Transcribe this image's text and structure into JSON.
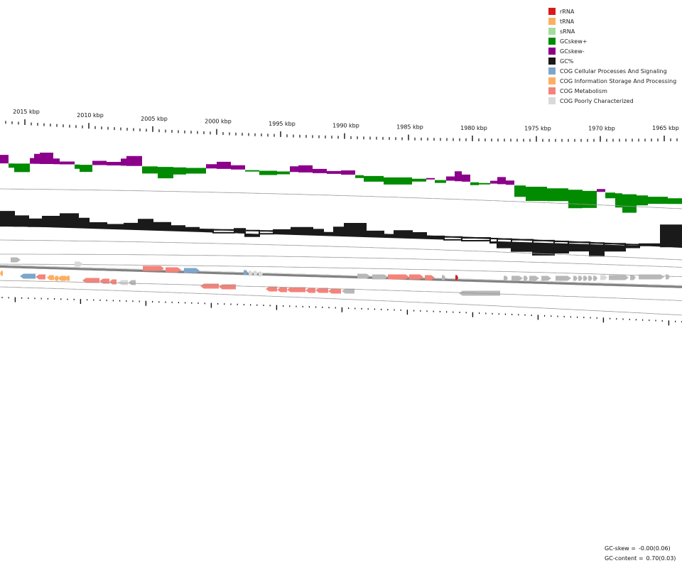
{
  "legend": [
    {
      "label": "rRNA",
      "color": "#d7191c"
    },
    {
      "label": "tRNA",
      "color": "#fdae61"
    },
    {
      "label": "sRNA",
      "color": "#a6dba0"
    },
    {
      "label": "GCskew+",
      "color": "#008b00"
    },
    {
      "label": "GCskew-",
      "color": "#8b008b"
    },
    {
      "label": "GC%",
      "color": "#1a1a1a"
    },
    {
      "label": "COG Cellular Processes And Signaling",
      "color": "#7ea6cb"
    },
    {
      "label": "COG Information Storage And Processing",
      "color": "#fdae61"
    },
    {
      "label": "COG Metabolism",
      "color": "#f4837a"
    },
    {
      "label": "COG Poorly Characterized",
      "color": "#d9d9d9"
    }
  ],
  "ruler": {
    "ticks": [
      "2015 kbp",
      "2010 kbp",
      "2005 kbp",
      "2000 kbp",
      "1995 kbp",
      "1990 kbp",
      "1985 kbp",
      "1980 kbp",
      "1975 kbp",
      "1970 kbp",
      "1965 kbp"
    ]
  },
  "stats": {
    "gc_skew_label": "GC-skew =",
    "gc_skew_value": "-0.00(0.06)",
    "gc_content_label": "GC-content =",
    "gc_content_value": "0.70(0.03)"
  },
  "colors": {
    "skew_pos": "#008b00",
    "skew_neg": "#8b008b",
    "gc": "#1a1a1a",
    "ring": "#999999",
    "backbone": "#808080",
    "cog_cellular": "#7ea6cb",
    "cog_info": "#fdae61",
    "cog_metabolism": "#f4837a",
    "cog_poorly": "#d9d9d9",
    "uncategorized": "#b8b8b8",
    "rrna": "#d7191c"
  }
}
